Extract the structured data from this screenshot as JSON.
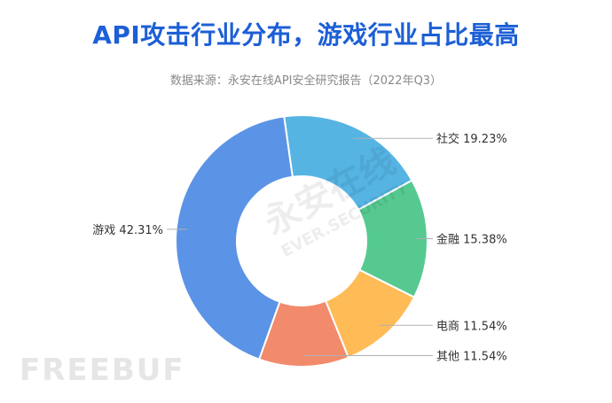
{
  "header": {
    "title": "API攻击行业分布，游戏行业占比最高",
    "subtitle": "数据来源：永安在线API安全研究报告（2022年Q3）"
  },
  "watermarks": {
    "center_cn": "永安在线",
    "center_en": "EVER.SECURITY",
    "footer": "FREEBUF"
  },
  "chart_data": {
    "type": "pie",
    "donut": true,
    "title": "API攻击行业分布，游戏行业占比最高",
    "subtitle": "数据来源：永安在线API安全研究报告（2022年Q3）",
    "slices": [
      {
        "label": "社交 19.23%",
        "value": 19.23,
        "color": "#56b4e3"
      },
      {
        "label": "金融 15.38%",
        "value": 15.38,
        "color": "#56c991"
      },
      {
        "label": "电商 11.54%",
        "value": 11.54,
        "color": "#ffbb55"
      },
      {
        "label": "其他 11.54%",
        "value": 11.54,
        "color": "#f28a6c"
      },
      {
        "label": "游戏 42.31%",
        "value": 42.31,
        "color": "#5b93e6"
      }
    ]
  }
}
